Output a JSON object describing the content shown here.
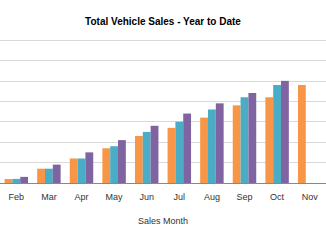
{
  "chart_data": {
    "type": "bar",
    "title": "Total Vehicle Sales - Year to Date",
    "xlabel": "Sales Month",
    "categories": [
      "Feb",
      "Mar",
      "Apr",
      "May",
      "Jun",
      "Jul",
      "Aug",
      "Sep",
      "Oct",
      "Nov"
    ],
    "series": [
      {
        "color": "#f79646",
        "values": [
          0.2,
          0.7,
          1.2,
          1.7,
          2.3,
          2.7,
          3.2,
          3.8,
          4.2,
          4.8
        ]
      },
      {
        "color": "#4bacc6",
        "values": [
          0.2,
          0.7,
          1.2,
          1.8,
          2.5,
          3.0,
          3.6,
          4.2,
          4.8,
          null
        ]
      },
      {
        "color": "#8064a2",
        "values": [
          0.3,
          0.9,
          1.5,
          2.1,
          2.8,
          3.4,
          3.9,
          4.4,
          5.0,
          null
        ]
      }
    ],
    "ylim": [
      0,
      7
    ],
    "yticks": [
      0,
      1,
      2,
      3,
      4,
      5,
      6,
      7
    ],
    "grid": true,
    "tick_labels": "x"
  }
}
